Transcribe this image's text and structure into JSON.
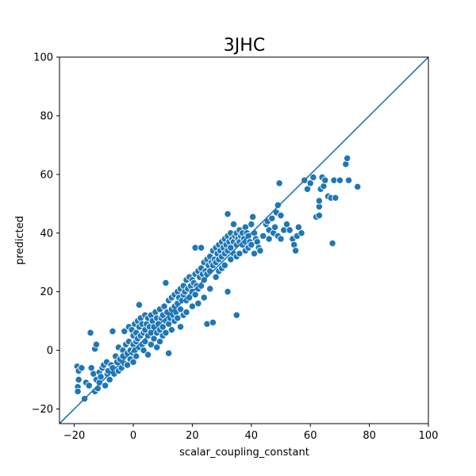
{
  "chart_data": {
    "type": "scatter",
    "title": "3JHC",
    "xlabel": "scalar_coupling_constant",
    "ylabel": "predicted",
    "xlim": [
      -25,
      100
    ],
    "ylim": [
      -25,
      100
    ],
    "xticks": [
      -20,
      0,
      20,
      40,
      60,
      80,
      100
    ],
    "yticks": [
      -20,
      0,
      20,
      40,
      60,
      80,
      100
    ],
    "grid": false,
    "marker_color": "#1f77b4",
    "marker_edge": "#ffffff",
    "reference_line": {
      "from": [
        -25,
        -25
      ],
      "to": [
        100,
        100
      ],
      "color": "#1f77b4"
    },
    "points": [
      [
        -19,
        -5.5
      ],
      [
        -18.5,
        -7
      ],
      [
        -18.5,
        -10
      ],
      [
        -18.8,
        -12.5
      ],
      [
        -18.8,
        -14
      ],
      [
        -17.5,
        -6
      ],
      [
        -16.5,
        -16.5
      ],
      [
        -16,
        -11
      ],
      [
        -15,
        -12
      ],
      [
        -14.5,
        6
      ],
      [
        -14.2,
        -6
      ],
      [
        -13.5,
        -8
      ],
      [
        -13,
        -14
      ],
      [
        -13,
        0.5
      ],
      [
        -12.5,
        2
      ],
      [
        -12.5,
        -10
      ],
      [
        -12,
        -13
      ],
      [
        -11.5,
        -11
      ],
      [
        -11.5,
        -7.5
      ],
      [
        -11,
        -9
      ],
      [
        -10.5,
        -6
      ],
      [
        -10,
        -5
      ],
      [
        -9.5,
        -12
      ],
      [
        -9,
        -4
      ],
      [
        -8.8,
        -8
      ],
      [
        -8.5,
        -7
      ],
      [
        -8,
        -10
      ],
      [
        -7.5,
        -5
      ],
      [
        -7,
        6.5
      ],
      [
        -7,
        -6
      ],
      [
        -6.5,
        -8
      ],
      [
        -6,
        -2
      ],
      [
        -5.5,
        -4
      ],
      [
        -5,
        -7
      ],
      [
        -5,
        1
      ],
      [
        -4.5,
        -3
      ],
      [
        -4,
        -6
      ],
      [
        -3.5,
        0
      ],
      [
        -3.5,
        -2
      ],
      [
        -3,
        6.5
      ],
      [
        -3,
        -4.5
      ],
      [
        -2.5,
        2
      ],
      [
        -2,
        -1
      ],
      [
        -2,
        -5
      ],
      [
        -1.5,
        8
      ],
      [
        -1.5,
        3
      ],
      [
        -1,
        0
      ],
      [
        -1,
        -3
      ],
      [
        -0.5,
        7
      ],
      [
        0,
        5
      ],
      [
        0,
        2
      ],
      [
        0,
        -1
      ],
      [
        0,
        -4
      ],
      [
        0.5,
        9
      ],
      [
        0.5,
        0
      ],
      [
        1,
        6
      ],
      [
        1,
        3
      ],
      [
        1,
        -2
      ],
      [
        1.5,
        10
      ],
      [
        1.5,
        4
      ],
      [
        2,
        15.5
      ],
      [
        2,
        8
      ],
      [
        2,
        1
      ],
      [
        2.5,
        11
      ],
      [
        2.5,
        5
      ],
      [
        3,
        9
      ],
      [
        3,
        2
      ],
      [
        3.5,
        6
      ],
      [
        3.5,
        0
      ],
      [
        4,
        12
      ],
      [
        4,
        7
      ],
      [
        4,
        3
      ],
      [
        4.5,
        9
      ],
      [
        5,
        11
      ],
      [
        5,
        5
      ],
      [
        5,
        -1.5
      ],
      [
        5.5,
        8
      ],
      [
        6,
        12
      ],
      [
        6,
        6
      ],
      [
        6,
        2
      ],
      [
        6.5,
        10
      ],
      [
        7,
        8
      ],
      [
        7,
        4
      ],
      [
        7.5,
        13
      ],
      [
        8,
        11
      ],
      [
        8,
        6
      ],
      [
        8,
        1
      ],
      [
        8.5,
        9
      ],
      [
        9,
        14
      ],
      [
        9,
        7
      ],
      [
        9,
        3
      ],
      [
        9.5,
        11
      ],
      [
        10,
        12
      ],
      [
        10,
        8
      ],
      [
        10,
        5
      ],
      [
        10.5,
        15
      ],
      [
        11,
        23
      ],
      [
        11,
        10
      ],
      [
        11,
        6
      ],
      [
        11.5,
        13
      ],
      [
        12,
        17
      ],
      [
        12,
        9
      ],
      [
        12,
        -1
      ],
      [
        12.5,
        11
      ],
      [
        13,
        18
      ],
      [
        13,
        14
      ],
      [
        13,
        7
      ],
      [
        13.5,
        12
      ],
      [
        14,
        19
      ],
      [
        14,
        15
      ],
      [
        14,
        10
      ],
      [
        14.5,
        13
      ],
      [
        15,
        20
      ],
      [
        15,
        16
      ],
      [
        15,
        11
      ],
      [
        15.5,
        18
      ],
      [
        16,
        21
      ],
      [
        16,
        14
      ],
      [
        16,
        8
      ],
      [
        16.5,
        17
      ],
      [
        17,
        22
      ],
      [
        17,
        19
      ],
      [
        17,
        12
      ],
      [
        17.5,
        20
      ],
      [
        18,
        24
      ],
      [
        18,
        17
      ],
      [
        18,
        13
      ],
      [
        18.5,
        21
      ],
      [
        19,
        25
      ],
      [
        19,
        18
      ],
      [
        19.5,
        22
      ],
      [
        20,
        24
      ],
      [
        20,
        20
      ],
      [
        20,
        15
      ],
      [
        20.5,
        23
      ],
      [
        21,
        35
      ],
      [
        21,
        26
      ],
      [
        21,
        19
      ],
      [
        21.5,
        22
      ],
      [
        22,
        27
      ],
      [
        22,
        21
      ],
      [
        22,
        16
      ],
      [
        22.5,
        25
      ],
      [
        23,
        35
      ],
      [
        23,
        28
      ],
      [
        23,
        22
      ],
      [
        23.5,
        26
      ],
      [
        24,
        30
      ],
      [
        24,
        24
      ],
      [
        24,
        18
      ],
      [
        24.5,
        27
      ],
      [
        25,
        31
      ],
      [
        25,
        26
      ],
      [
        25,
        9
      ],
      [
        25.5,
        29
      ],
      [
        26,
        32
      ],
      [
        26,
        27
      ],
      [
        26,
        21
      ],
      [
        26.5,
        30
      ],
      [
        27,
        34
      ],
      [
        27,
        29
      ],
      [
        27,
        9.5
      ],
      [
        27.5,
        31
      ],
      [
        28,
        35
      ],
      [
        28,
        30
      ],
      [
        28,
        25
      ],
      [
        28.5,
        33
      ],
      [
        29,
        36
      ],
      [
        29,
        31
      ],
      [
        29,
        27
      ],
      [
        29.5,
        34
      ],
      [
        30,
        37
      ],
      [
        30,
        32
      ],
      [
        30,
        28
      ],
      [
        30.5,
        35
      ],
      [
        31,
        38
      ],
      [
        31,
        33
      ],
      [
        31,
        29
      ],
      [
        31.5,
        36
      ],
      [
        32,
        46.5
      ],
      [
        32,
        39
      ],
      [
        32,
        34
      ],
      [
        32,
        20
      ],
      [
        32.5,
        37
      ],
      [
        33,
        40
      ],
      [
        33,
        35
      ],
      [
        33,
        31
      ],
      [
        33.5,
        38
      ],
      [
        34,
        43
      ],
      [
        34,
        37
      ],
      [
        34,
        33
      ],
      [
        34.5,
        39
      ],
      [
        35,
        40
      ],
      [
        35,
        36
      ],
      [
        35,
        32
      ],
      [
        35,
        12
      ],
      [
        35.5,
        38
      ],
      [
        36,
        41
      ],
      [
        36,
        37
      ],
      [
        36,
        33
      ],
      [
        36.5,
        39
      ],
      [
        37,
        40
      ],
      [
        37,
        36
      ],
      [
        37.5,
        38
      ],
      [
        38,
        42
      ],
      [
        38,
        37
      ],
      [
        38,
        34
      ],
      [
        38.5,
        40
      ],
      [
        39,
        39
      ],
      [
        39,
        35
      ],
      [
        39.5,
        37
      ],
      [
        40,
        43
      ],
      [
        40,
        36
      ],
      [
        40.5,
        45.5
      ],
      [
        41,
        40
      ],
      [
        41,
        33
      ],
      [
        41.5,
        38
      ],
      [
        42,
        37
      ],
      [
        42.5,
        35
      ],
      [
        43,
        34
      ],
      [
        44,
        39
      ],
      [
        45,
        43
      ],
      [
        45.5,
        44
      ],
      [
        46,
        41
      ],
      [
        46,
        38
      ],
      [
        47,
        45
      ],
      [
        47.5,
        40
      ],
      [
        48,
        42
      ],
      [
        48.5,
        47
      ],
      [
        49,
        49.5
      ],
      [
        49,
        39
      ],
      [
        49.5,
        57
      ],
      [
        50,
        38
      ],
      [
        50,
        46
      ],
      [
        51,
        41
      ],
      [
        52,
        43
      ],
      [
        53,
        41
      ],
      [
        54,
        38
      ],
      [
        54.5,
        36
      ],
      [
        55,
        34
      ],
      [
        55.5,
        39
      ],
      [
        56,
        42
      ],
      [
        57,
        40
      ],
      [
        58,
        58
      ],
      [
        59,
        55
      ],
      [
        60,
        57
      ],
      [
        61,
        59
      ],
      [
        62,
        45.5
      ],
      [
        63,
        46
      ],
      [
        63,
        49
      ],
      [
        63,
        51
      ],
      [
        63.5,
        55
      ],
      [
        64,
        59
      ],
      [
        64.5,
        56
      ],
      [
        65,
        58
      ],
      [
        66,
        52.5
      ],
      [
        67,
        52
      ],
      [
        67.5,
        36.5
      ],
      [
        68,
        58
      ],
      [
        68.5,
        52
      ],
      [
        70,
        58
      ],
      [
        72,
        63.5
      ],
      [
        72.5,
        65.5
      ],
      [
        73,
        58
      ],
      [
        76,
        55.8
      ]
    ]
  }
}
